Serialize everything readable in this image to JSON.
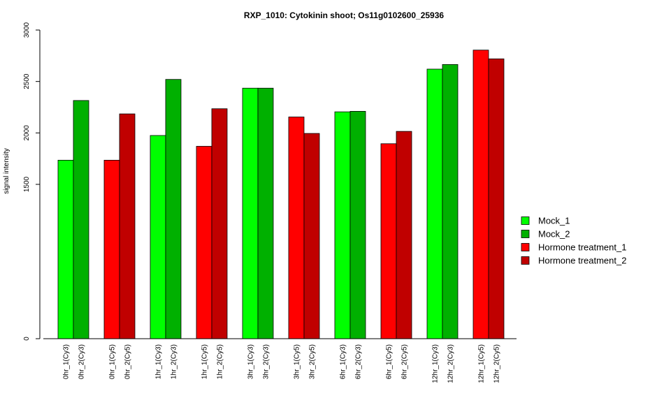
{
  "chart_data": {
    "type": "bar",
    "title": "RXP_1010: Cytokinin shoot; Os11g0102600_25936",
    "xlabel": "",
    "ylabel": "signal intensity",
    "ylim": [
      0,
      3000
    ],
    "yticks": [
      0,
      1500,
      2000,
      2500,
      3000
    ],
    "grid": false,
    "legend_position": "right",
    "categories": [
      "0hr_1(Cy3)",
      "0hr_2(Cy3)",
      "0hr_1(Cy5)",
      "0hr_2(Cy5)",
      "1hr_1(Cy3)",
      "1hr_2(Cy3)",
      "1hr_1(Cy5)",
      "1hr_2(Cy5)",
      "3hr_1(Cy3)",
      "3hr_2(Cy3)",
      "3hr_1(Cy5)",
      "3hr_2(Cy5)",
      "6hr_1(Cy3)",
      "6hr_2(Cy3)",
      "6hr_1(Cy5)",
      "6hr_2(Cy5)",
      "12hr_1(Cy3)",
      "12hr_2(Cy3)",
      "12hr_1(Cy5)",
      "12hr_2(Cy5)"
    ],
    "values": [
      1735,
      2315,
      1735,
      2185,
      1975,
      2520,
      1870,
      2235,
      2435,
      2435,
      2155,
      1995,
      2205,
      2210,
      1895,
      2015,
      2620,
      2665,
      2805,
      2720
    ],
    "bar_series": [
      0,
      1,
      2,
      3,
      0,
      1,
      2,
      3,
      0,
      1,
      2,
      3,
      0,
      1,
      2,
      3,
      0,
      1,
      2,
      3
    ],
    "series": [
      {
        "name": "Mock_1",
        "color": "#00ff00"
      },
      {
        "name": "Mock_2",
        "color": "#00b000"
      },
      {
        "name": "Hormone treatment_1",
        "color": "#ff0000"
      },
      {
        "name": "Hormone treatment_2",
        "color": "#c00000"
      }
    ]
  }
}
